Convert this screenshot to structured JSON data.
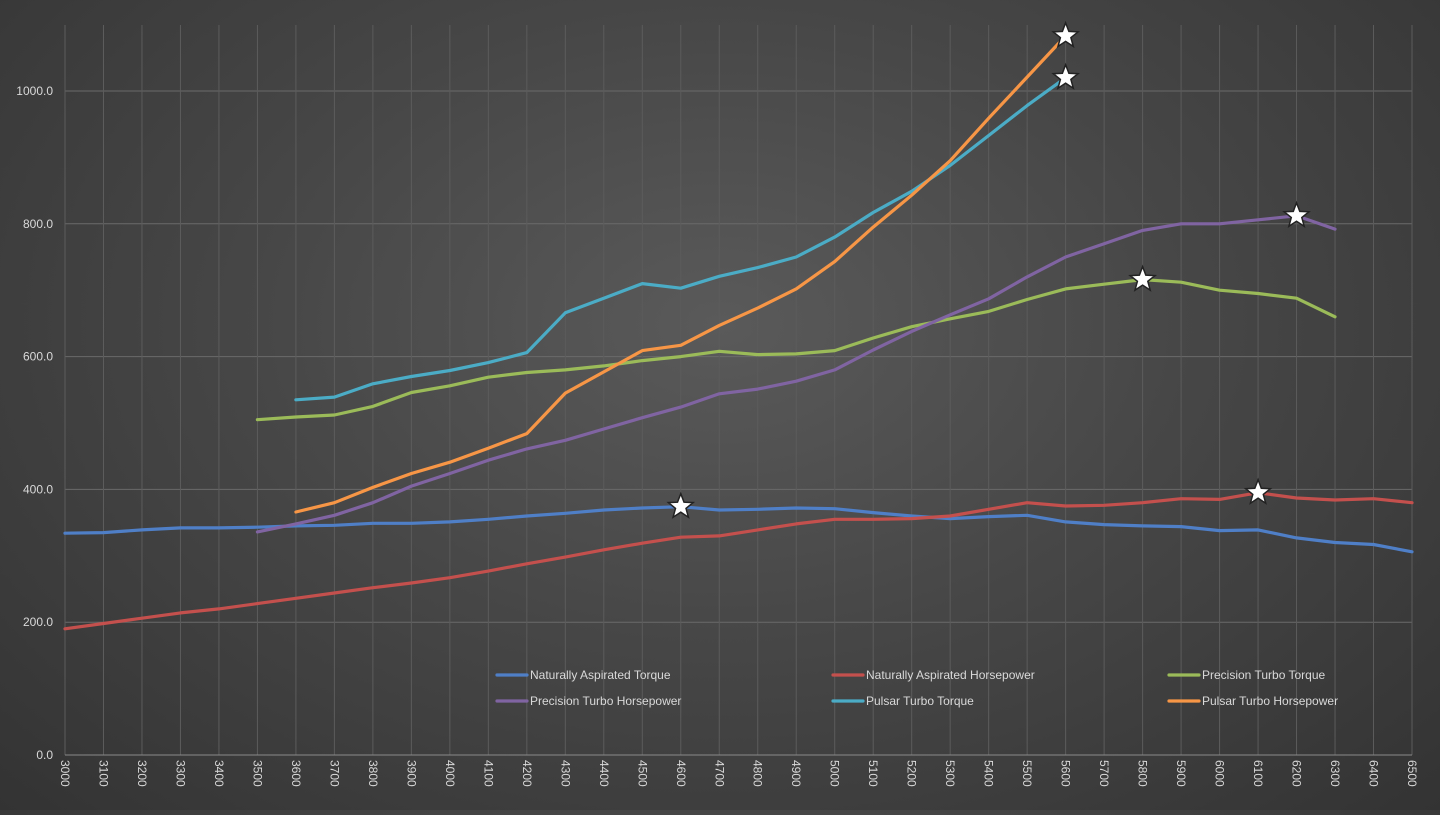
{
  "chart_data": {
    "type": "line",
    "title": "",
    "xlabel": "",
    "ylabel": "",
    "ylim": [
      0,
      1000
    ],
    "y_ticks": [
      "0.0",
      "200.0",
      "400.0",
      "600.0",
      "800.0",
      "1000.0"
    ],
    "x": [
      3000,
      3100,
      3200,
      3300,
      3400,
      3500,
      3600,
      3700,
      3800,
      3900,
      4000,
      4100,
      4200,
      4300,
      4400,
      4500,
      4600,
      4700,
      4800,
      4900,
      5000,
      5100,
      5200,
      5300,
      5400,
      5500,
      5600,
      5700,
      5800,
      5900,
      6000,
      6100,
      6200,
      6300,
      6400,
      6500
    ],
    "x_tick_labels": [
      "3000",
      "3100",
      "3200",
      "3300",
      "3400",
      "3500",
      "3600",
      "3700",
      "3800",
      "3900",
      "4000",
      "4100",
      "4200",
      "4300",
      "4400",
      "4500",
      "4600",
      "4700",
      "4800",
      "4900",
      "5000",
      "5100",
      "5200",
      "5300",
      "5400",
      "5500",
      "5600",
      "5700",
      "5800",
      "5900",
      "6000",
      "6100",
      "6200",
      "6300",
      "6400",
      "6500"
    ],
    "grid": true,
    "legend_position": "bottom",
    "series": [
      {
        "name": "Naturally Aspirated Torque",
        "color": "#4f7fc7",
        "values": [
          334,
          335,
          339,
          342,
          342,
          343,
          345,
          346,
          349,
          349,
          351,
          355,
          360,
          364,
          369,
          372,
          374,
          369,
          370,
          372,
          371,
          365,
          360,
          356,
          359,
          361,
          351,
          347,
          345,
          344,
          338,
          339,
          327,
          320,
          317,
          306
        ],
        "peak_x": 4600
      },
      {
        "name": "Naturally Aspirated Horsepower",
        "color": "#c4504d",
        "values": [
          190,
          198,
          206,
          214,
          220,
          228,
          236,
          244,
          252,
          259,
          267,
          277,
          288,
          298,
          309,
          319,
          328,
          330,
          339,
          348,
          355,
          355,
          356,
          360,
          370,
          380,
          375,
          376,
          380,
          386,
          385,
          395,
          387,
          384,
          386,
          380
        ],
        "peak_x": 6100
      },
      {
        "name": "Precision Turbo Torque",
        "color": "#9bbb59",
        "values": [
          null,
          null,
          null,
          null,
          null,
          505,
          509,
          512,
          525,
          546,
          556,
          569,
          576,
          580,
          586,
          594,
          600,
          608,
          603,
          604,
          609,
          628,
          645,
          657,
          668,
          686,
          702,
          709,
          716,
          712,
          700,
          695,
          688,
          660,
          null,
          null
        ],
        "peak_x": 5800
      },
      {
        "name": "Precision Turbo Horsepower",
        "color": "#8064a2",
        "values": [
          null,
          null,
          null,
          null,
          null,
          336,
          348,
          361,
          380,
          405,
          424,
          444,
          461,
          474,
          491,
          508,
          524,
          544,
          551,
          563,
          580,
          610,
          638,
          663,
          687,
          720,
          750,
          770,
          790,
          800,
          800,
          806,
          812,
          792,
          null,
          null
        ],
        "peak_x": 6200
      },
      {
        "name": "Pulsar Turbo Torque",
        "color": "#4bacc6",
        "values": [
          null,
          null,
          null,
          null,
          null,
          null,
          535,
          539,
          559,
          570,
          579,
          591,
          606,
          666,
          688,
          710,
          703,
          721,
          734,
          750,
          780,
          817,
          849,
          888,
          933,
          978,
          1020,
          null,
          null,
          null,
          null,
          null,
          null,
          null,
          null,
          null
        ],
        "peak_x": 5600
      },
      {
        "name": "Pulsar Turbo Horsepower",
        "color": "#f79646",
        "values": [
          null,
          null,
          null,
          null,
          null,
          null,
          366,
          380,
          403,
          424,
          441,
          462,
          484,
          545,
          577,
          609,
          617,
          647,
          673,
          702,
          743,
          795,
          843,
          895,
          959,
          1021,
          1083,
          null,
          null,
          null,
          null,
          null,
          null,
          null,
          null,
          null
        ],
        "peak_x": 5600
      }
    ]
  }
}
